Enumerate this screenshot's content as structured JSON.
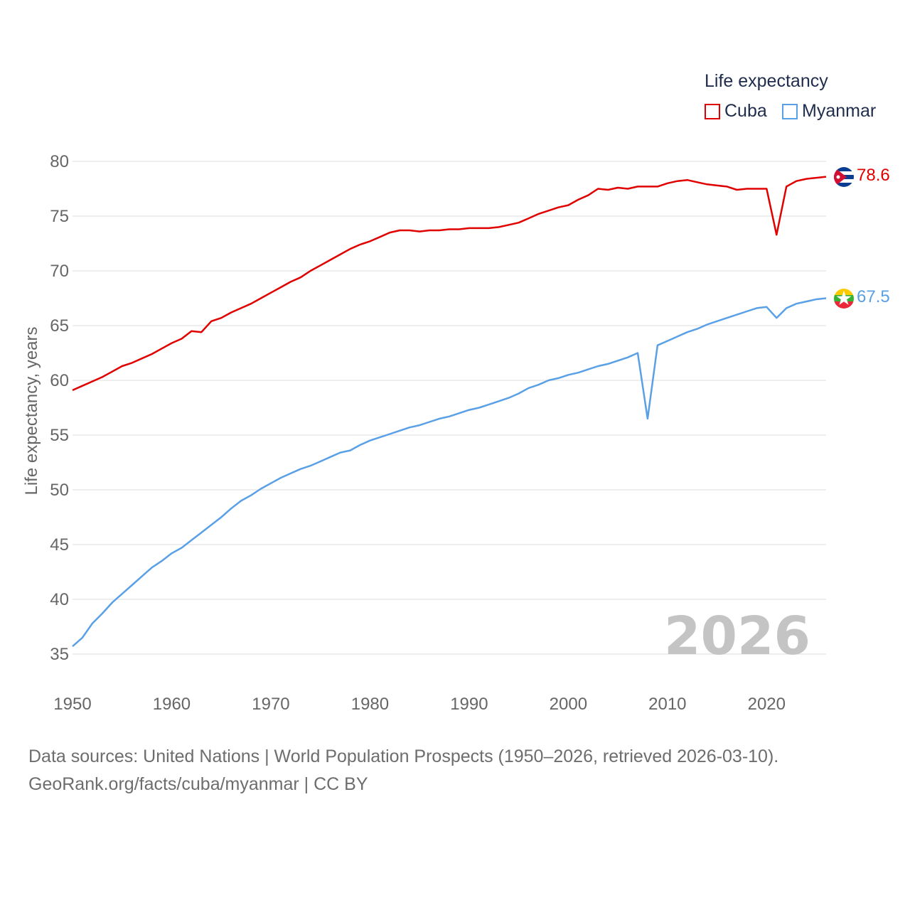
{
  "legend": {
    "title": "Life expectancy",
    "items": [
      {
        "name": "Cuba",
        "color": "#e00000"
      },
      {
        "name": "Myanmar",
        "color": "#5aa0e6"
      }
    ]
  },
  "year_label": "2026",
  "sources": {
    "line1": "Data sources: United Nations | World Population Prospects (1950–2026, retrieved 2026-03-10).",
    "line2": "GeoRank.org/facts/cuba/myanmar | CC BY"
  },
  "chart_data": {
    "type": "line",
    "title": "Life expectancy",
    "xlabel": "",
    "ylabel": "Life expectancy, years",
    "xlim": [
      1950,
      2026
    ],
    "ylim": [
      35,
      80
    ],
    "x_ticks": [
      1950,
      1960,
      1970,
      1980,
      1990,
      2000,
      2010,
      2020
    ],
    "y_ticks": [
      35,
      40,
      45,
      50,
      55,
      60,
      65,
      70,
      75,
      80
    ],
    "grid": true,
    "legend_position": "top-right",
    "annotations": [
      {
        "text": "2026",
        "position": "bottom-right"
      }
    ],
    "series": [
      {
        "name": "Cuba",
        "color": "#e00000",
        "end_label": "78.6",
        "flag": "cuba-flag-icon",
        "x": [
          1950,
          1951,
          1952,
          1953,
          1954,
          1955,
          1956,
          1957,
          1958,
          1959,
          1960,
          1961,
          1962,
          1963,
          1964,
          1965,
          1966,
          1967,
          1968,
          1969,
          1970,
          1971,
          1972,
          1973,
          1974,
          1975,
          1976,
          1977,
          1978,
          1979,
          1980,
          1981,
          1982,
          1983,
          1984,
          1985,
          1986,
          1987,
          1988,
          1989,
          1990,
          1991,
          1992,
          1993,
          1994,
          1995,
          1996,
          1997,
          1998,
          1999,
          2000,
          2001,
          2002,
          2003,
          2004,
          2005,
          2006,
          2007,
          2008,
          2009,
          2010,
          2011,
          2012,
          2013,
          2014,
          2015,
          2016,
          2017,
          2018,
          2019,
          2020,
          2021,
          2022,
          2023,
          2024,
          2025,
          2026
        ],
        "values": [
          59.1,
          59.5,
          59.9,
          60.3,
          60.8,
          61.3,
          61.6,
          62.0,
          62.4,
          62.9,
          63.4,
          63.8,
          64.5,
          64.4,
          65.4,
          65.7,
          66.2,
          66.6,
          67.0,
          67.5,
          68.0,
          68.5,
          69.0,
          69.4,
          70.0,
          70.5,
          71.0,
          71.5,
          72.0,
          72.4,
          72.7,
          73.1,
          73.5,
          73.7,
          73.7,
          73.6,
          73.7,
          73.7,
          73.8,
          73.8,
          73.9,
          73.9,
          73.9,
          74.0,
          74.2,
          74.4,
          74.8,
          75.2,
          75.5,
          75.8,
          76.0,
          76.5,
          76.9,
          77.5,
          77.4,
          77.6,
          77.5,
          77.7,
          77.7,
          77.7,
          78.0,
          78.2,
          78.3,
          78.1,
          77.9,
          77.8,
          77.7,
          77.4,
          77.5,
          77.5,
          77.5,
          73.3,
          77.7,
          78.2,
          78.4,
          78.5,
          78.6
        ]
      },
      {
        "name": "Myanmar",
        "color": "#5aa0e6",
        "end_label": "67.5",
        "flag": "myanmar-flag-icon",
        "x": [
          1950,
          1951,
          1952,
          1953,
          1954,
          1955,
          1956,
          1957,
          1958,
          1959,
          1960,
          1961,
          1962,
          1963,
          1964,
          1965,
          1966,
          1967,
          1968,
          1969,
          1970,
          1971,
          1972,
          1973,
          1974,
          1975,
          1976,
          1977,
          1978,
          1979,
          1980,
          1981,
          1982,
          1983,
          1984,
          1985,
          1986,
          1987,
          1988,
          1989,
          1990,
          1991,
          1992,
          1993,
          1994,
          1995,
          1996,
          1997,
          1998,
          1999,
          2000,
          2001,
          2002,
          2003,
          2004,
          2005,
          2006,
          2007,
          2008,
          2009,
          2010,
          2011,
          2012,
          2013,
          2014,
          2015,
          2016,
          2017,
          2018,
          2019,
          2020,
          2021,
          2022,
          2023,
          2024,
          2025,
          2026
        ],
        "values": [
          35.7,
          36.5,
          37.8,
          38.7,
          39.7,
          40.5,
          41.3,
          42.1,
          42.9,
          43.5,
          44.2,
          44.7,
          45.4,
          46.1,
          46.8,
          47.5,
          48.3,
          49.0,
          49.5,
          50.1,
          50.6,
          51.1,
          51.5,
          51.9,
          52.2,
          52.6,
          53.0,
          53.4,
          53.6,
          54.1,
          54.5,
          54.8,
          55.1,
          55.4,
          55.7,
          55.9,
          56.2,
          56.5,
          56.7,
          57.0,
          57.3,
          57.5,
          57.8,
          58.1,
          58.4,
          58.8,
          59.3,
          59.6,
          60.0,
          60.2,
          60.5,
          60.7,
          61.0,
          61.3,
          61.5,
          61.8,
          62.1,
          62.5,
          56.5,
          63.2,
          63.6,
          64.0,
          64.4,
          64.7,
          65.1,
          65.4,
          65.7,
          66.0,
          66.3,
          66.6,
          66.7,
          65.7,
          66.6,
          67.0,
          67.2,
          67.4,
          67.5
        ]
      }
    ]
  }
}
